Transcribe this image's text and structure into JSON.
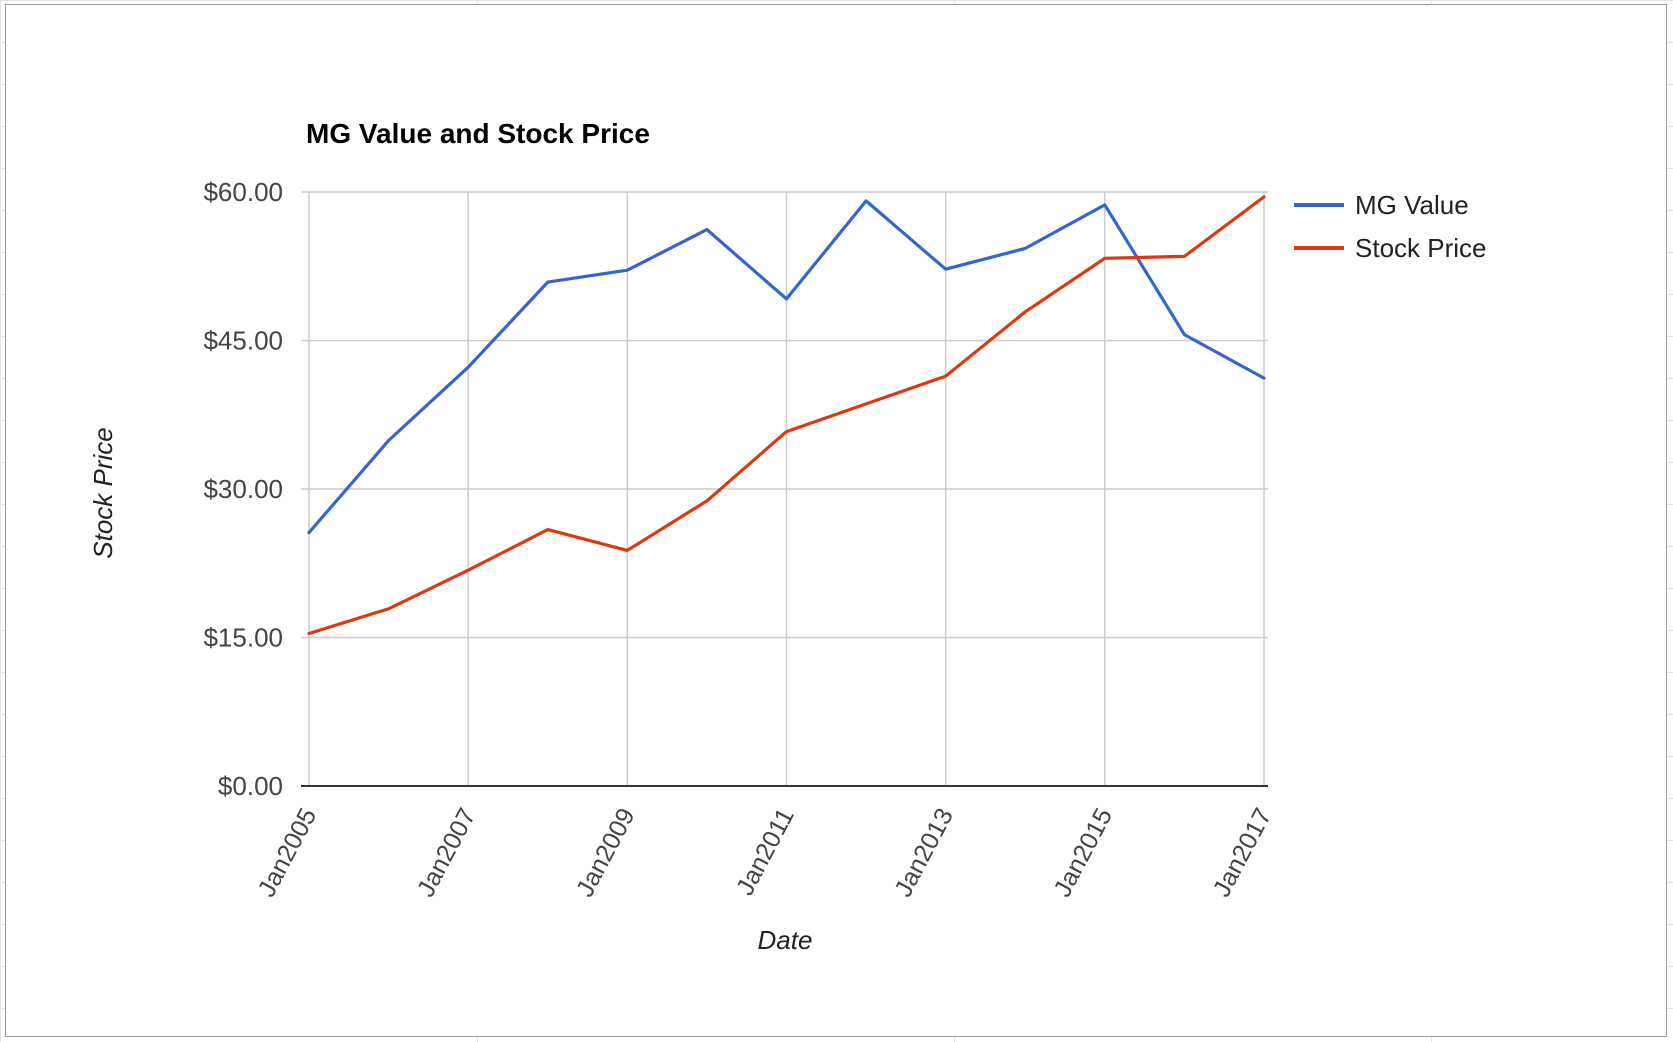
{
  "chart_data": {
    "type": "line",
    "title": "MG Value and Stock Price",
    "xlabel": "Date",
    "ylabel": "Stock Price",
    "ylim": [
      0,
      60
    ],
    "y_ticks": [
      "$0.00",
      "$15.00",
      "$30.00",
      "$45.00",
      "$60.00"
    ],
    "y_tick_values": [
      0,
      15,
      30,
      45,
      60
    ],
    "x_tick_labels": [
      "Jan2005",
      "Jan2007",
      "Jan2009",
      "Jan2011",
      "Jan2013",
      "Jan2015",
      "Jan2017"
    ],
    "x_tick_years": [
      2005,
      2007,
      2009,
      2011,
      2013,
      2015,
      2017
    ],
    "x": [
      2005.0,
      2006.0,
      2007.0,
      2008.0,
      2009.0,
      2010.0,
      2011.0,
      2012.0,
      2013.0,
      2014.0,
      2015.0,
      2016.0,
      2017.0
    ],
    "xlim": [
      2005.0,
      2017.0
    ],
    "grid": true,
    "legend_position": "right",
    "series": [
      {
        "name": "MG Value",
        "color": "#3366cc",
        "values": [
          25.6,
          34.9,
          42.3,
          50.9,
          52.1,
          56.2,
          49.2,
          59.1,
          52.2,
          54.3,
          58.7,
          45.6,
          41.2
        ]
      },
      {
        "name": "Stock Price",
        "color": "#dc3912",
        "values": [
          15.4,
          17.9,
          21.8,
          25.9,
          23.8,
          28.8,
          35.8,
          38.6,
          41.4,
          47.9,
          53.3,
          53.5,
          59.5
        ]
      }
    ]
  }
}
